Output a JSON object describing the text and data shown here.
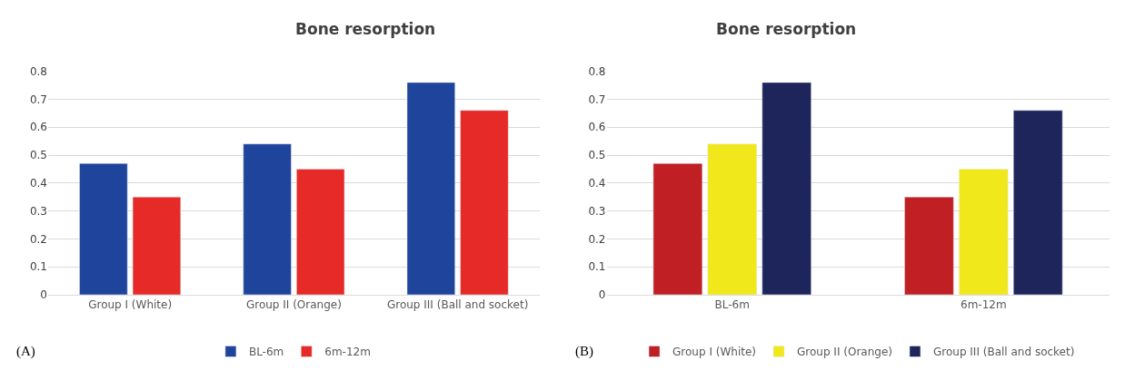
{
  "chart_data": [
    {
      "type": "bar",
      "title": "Bone resorption",
      "categories": [
        "Group I (White)",
        "Group II (Orange)",
        "Group III (Ball and socket)"
      ],
      "series": [
        {
          "name": "BL-6m",
          "color": "#1f449c",
          "values": [
            0.47,
            0.54,
            0.76
          ]
        },
        {
          "name": "6m-12m",
          "color": "#e52a28",
          "values": [
            0.35,
            0.45,
            0.66
          ]
        }
      ],
      "ylim": [
        0,
        0.8
      ],
      "yticks": [
        0,
        0.1,
        0.2,
        0.3,
        0.4,
        0.5,
        0.6,
        0.7,
        0.8
      ],
      "grid": "y",
      "legend": "bottom",
      "annotations": [
        "(A)"
      ]
    },
    {
      "type": "bar",
      "title": "Bone resorption",
      "categories": [
        "BL-6m",
        "6m-12m"
      ],
      "series": [
        {
          "name": "Group I (White)",
          "color": "#c01f24",
          "values": [
            0.47,
            0.35
          ]
        },
        {
          "name": "Group II (Orange)",
          "color": "#f0e81a",
          "values": [
            0.54,
            0.45
          ]
        },
        {
          "name": "Group III (Ball and socket)",
          "color": "#1e255b",
          "values": [
            0.76,
            0.66
          ]
        }
      ],
      "ylim": [
        0,
        0.8
      ],
      "yticks": [
        0,
        0.1,
        0.2,
        0.3,
        0.4,
        0.5,
        0.6,
        0.7,
        0.8
      ],
      "grid": "y",
      "legend": "bottom",
      "annotations": [
        "(B)"
      ]
    }
  ]
}
